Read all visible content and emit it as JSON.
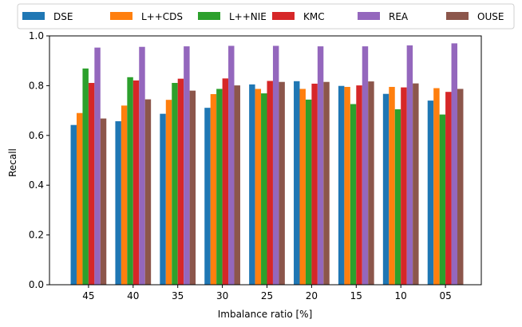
{
  "chart_data": {
    "type": "bar",
    "title": "",
    "xlabel": "Imbalance ratio [%]",
    "ylabel": "Recall",
    "ylim": [
      0.0,
      1.0
    ],
    "yticks": [
      "0.0",
      "0.2",
      "0.4",
      "0.6",
      "0.8",
      "1.0"
    ],
    "grid": false,
    "legend_position": "top",
    "categories": [
      "45",
      "40",
      "35",
      "30",
      "25",
      "20",
      "15",
      "10",
      "05"
    ],
    "series": [
      {
        "name": "DSE",
        "color": "#1f77b4",
        "values": [
          0.642,
          0.657,
          0.687,
          0.711,
          0.805,
          0.818,
          0.799,
          0.767,
          0.74
        ]
      },
      {
        "name": "L++CDS",
        "color": "#ff7f0e",
        "values": [
          0.69,
          0.72,
          0.743,
          0.766,
          0.787,
          0.787,
          0.795,
          0.795,
          0.79
        ]
      },
      {
        "name": "L++NIE",
        "color": "#2ca02c",
        "values": [
          0.869,
          0.834,
          0.811,
          0.787,
          0.769,
          0.744,
          0.726,
          0.705,
          0.684
        ]
      },
      {
        "name": "KMC",
        "color": "#d62728",
        "values": [
          0.811,
          0.821,
          0.828,
          0.829,
          0.819,
          0.808,
          0.801,
          0.793,
          0.775
        ]
      },
      {
        "name": "REA",
        "color": "#9467bd",
        "values": [
          0.953,
          0.956,
          0.958,
          0.96,
          0.96,
          0.958,
          0.958,
          0.962,
          0.97
        ]
      },
      {
        "name": "OUSE",
        "color": "#8c564b",
        "values": [
          0.668,
          0.745,
          0.78,
          0.801,
          0.815,
          0.815,
          0.817,
          0.809,
          0.787
        ]
      }
    ]
  }
}
